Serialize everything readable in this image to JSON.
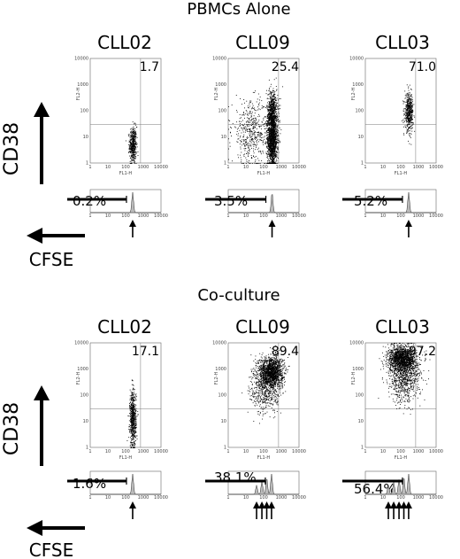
{
  "sections": [
    {
      "title": "PBMCs Alone",
      "panels": [
        {
          "sample": "CLL02",
          "pct_cd38": "1.7",
          "pct_divided": "0.2%"
        },
        {
          "sample": "CLL09",
          "pct_cd38": "25.4",
          "pct_divided": "3.5%"
        },
        {
          "sample": "CLL03",
          "pct_cd38": "71.0",
          "pct_divided": "5.2%"
        }
      ]
    },
    {
      "title": "Co-culture",
      "panels": [
        {
          "sample": "CLL02",
          "pct_cd38": "17.1",
          "pct_divided": "1.6%"
        },
        {
          "sample": "CLL09",
          "pct_cd38": "89.4",
          "pct_divided": "38.1%"
        },
        {
          "sample": "CLL03",
          "pct_cd38": "97.2",
          "pct_divided": "56.4%"
        }
      ]
    }
  ],
  "axis_labels": {
    "y": "CD38",
    "x": "CFSE",
    "scatter_x": "FL1-H",
    "scatter_y": "FL2-H"
  },
  "chart_data": [
    {
      "type": "scatter",
      "section": "PBMCs Alone",
      "title": "CLL02",
      "xlabel": "FL1-H",
      "ylabel": "FL2-H",
      "xscale": "log",
      "yscale": "log",
      "xlim": [
        1,
        10000
      ],
      "ylim": [
        1,
        10000
      ],
      "xticks": [
        "1",
        "10",
        "100",
        "1000",
        "10000"
      ],
      "yticks": [
        "1",
        "10",
        "100",
        "1000",
        "10000"
      ],
      "annotation": "1.7",
      "populations": [
        {
          "x_center": 250,
          "y_center": 5,
          "x_spread": 0.1,
          "y_spread": 0.35,
          "weight": 1.0,
          "n": 450
        }
      ],
      "histogram": {
        "peaks": [
          250
        ],
        "percent_divided": "0.2%",
        "arrows_at": [
          250
        ]
      }
    },
    {
      "type": "scatter",
      "section": "PBMCs Alone",
      "title": "CLL09",
      "xlabel": "FL1-H",
      "ylabel": "FL2-H",
      "xscale": "log",
      "yscale": "log",
      "xlim": [
        1,
        10000
      ],
      "ylim": [
        1,
        10000
      ],
      "xticks": [
        "1",
        "10",
        "100",
        "1000",
        "10000"
      ],
      "yticks": [
        "1",
        "10",
        "100",
        "1000",
        "10000"
      ],
      "annotation": "25.4",
      "populations": [
        {
          "x_center": 300,
          "y_center": 8,
          "x_spread": 0.14,
          "y_spread": 0.55,
          "weight": 0.62,
          "n": 1400
        },
        {
          "x_center": 300,
          "y_center": 90,
          "x_spread": 0.16,
          "y_spread": 0.45,
          "weight": 0.25,
          "n": 600
        },
        {
          "x_center": 20,
          "y_center": 15,
          "x_spread": 0.55,
          "y_spread": 0.6,
          "weight": 0.13,
          "n": 500
        }
      ],
      "histogram": {
        "peaks": [
          300
        ],
        "percent_divided": "3.5%",
        "arrows_at": [
          300
        ]
      }
    },
    {
      "type": "scatter",
      "section": "PBMCs Alone",
      "title": "CLL03",
      "xlabel": "FL1-H",
      "ylabel": "FL2-H",
      "xscale": "log",
      "yscale": "log",
      "xlim": [
        1,
        10000
      ],
      "ylim": [
        1,
        10000
      ],
      "xticks": [
        "1",
        "10",
        "100",
        "1000",
        "10000"
      ],
      "yticks": [
        "1",
        "10",
        "100",
        "1000",
        "10000"
      ],
      "annotation": "71.0",
      "populations": [
        {
          "x_center": 280,
          "y_center": 90,
          "x_spread": 0.12,
          "y_spread": 0.35,
          "weight": 1.0,
          "n": 500
        }
      ],
      "histogram": {
        "peaks": [
          280
        ],
        "percent_divided": "5.2%",
        "arrows_at": [
          280
        ]
      }
    },
    {
      "type": "scatter",
      "section": "Co-culture",
      "title": "CLL02",
      "xlabel": "FL1-H",
      "ylabel": "FL2-H",
      "xscale": "log",
      "yscale": "log",
      "xlim": [
        1,
        10000
      ],
      "ylim": [
        1,
        10000
      ],
      "xticks": [
        "1",
        "10",
        "100",
        "1000",
        "10000"
      ],
      "yticks": [
        "1",
        "10",
        "100",
        "1000",
        "10000"
      ],
      "annotation": "17.1",
      "populations": [
        {
          "x_center": 250,
          "y_center": 12,
          "x_spread": 0.09,
          "y_spread": 0.55,
          "weight": 1.0,
          "n": 650
        }
      ],
      "histogram": {
        "peaks": [
          250
        ],
        "percent_divided": "1.6%",
        "arrows_at": [
          250
        ]
      }
    },
    {
      "type": "scatter",
      "section": "Co-culture",
      "title": "CLL09",
      "xlabel": "FL1-H",
      "ylabel": "FL2-H",
      "xscale": "log",
      "yscale": "log",
      "xlim": [
        1,
        10000
      ],
      "ylim": [
        1,
        10000
      ],
      "xticks": [
        "1",
        "10",
        "100",
        "1000",
        "10000"
      ],
      "yticks": [
        "1",
        "10",
        "100",
        "1000",
        "10000"
      ],
      "annotation": "89.4",
      "populations": [
        {
          "x_center": 250,
          "y_center": 800,
          "x_spread": 0.35,
          "y_spread": 0.3,
          "weight": 0.75,
          "n": 1500
        },
        {
          "x_center": 120,
          "y_center": 150,
          "x_spread": 0.45,
          "y_spread": 0.45,
          "weight": 0.25,
          "n": 500
        }
      ],
      "histogram": {
        "peaks": [
          40,
          80,
          150,
          280
        ],
        "percent_divided": "38.1%",
        "arrows_at": [
          40,
          80,
          150,
          280
        ]
      }
    },
    {
      "type": "scatter",
      "section": "Co-culture",
      "title": "CLL03",
      "xlabel": "FL1-H",
      "ylabel": "FL2-H",
      "xscale": "log",
      "yscale": "log",
      "xlim": [
        1,
        10000
      ],
      "ylim": [
        1,
        10000
      ],
      "xticks": [
        "1",
        "10",
        "100",
        "1000",
        "10000"
      ],
      "yticks": [
        "1",
        "10",
        "100",
        "1000",
        "10000"
      ],
      "annotation": "97.2",
      "populations": [
        {
          "x_center": 120,
          "y_center": 2500,
          "x_spread": 0.4,
          "y_spread": 0.25,
          "weight": 0.7,
          "n": 1500
        },
        {
          "x_center": 150,
          "y_center": 400,
          "x_spread": 0.45,
          "y_spread": 0.45,
          "weight": 0.3,
          "n": 700
        }
      ],
      "histogram": {
        "peaks": [
          20,
          40,
          80,
          150,
          280
        ],
        "percent_divided": "56.4%",
        "arrows_at": [
          20,
          40,
          80,
          150,
          280
        ]
      }
    }
  ]
}
